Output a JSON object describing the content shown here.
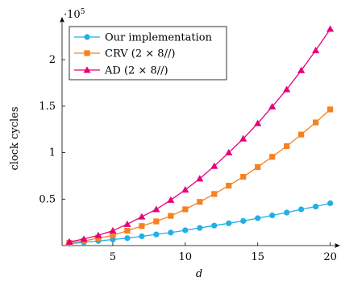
{
  "chart_data": {
    "type": "line",
    "title": "",
    "xlabel": "d",
    "ylabel": "clock cycles",
    "y_multiplier_label": "·10",
    "y_multiplier_exponent": "5",
    "xlim": [
      1.5,
      20.3
    ],
    "ylim": [
      0,
      2.4
    ],
    "x_ticks": [
      5,
      10,
      15,
      20
    ],
    "y_ticks": [
      0.5,
      1,
      1.5,
      2
    ],
    "x_tick_labels": [
      "5",
      "10",
      "15",
      "20"
    ],
    "y_tick_labels": [
      "0.5",
      "1",
      "1.5",
      "2"
    ],
    "grid": false,
    "legend_position": "top-left",
    "x": [
      2,
      3,
      4,
      5,
      6,
      7,
      8,
      9,
      10,
      11,
      12,
      13,
      14,
      15,
      16,
      17,
      18,
      19,
      20
    ],
    "series": [
      {
        "name": "Our implementation",
        "color": "#1fb0e6",
        "marker": "circle",
        "values": [
          0.02,
          0.035,
          0.05,
          0.065,
          0.08,
          0.1,
          0.12,
          0.14,
          0.165,
          0.19,
          0.215,
          0.24,
          0.265,
          0.295,
          0.325,
          0.355,
          0.39,
          0.42,
          0.455
        ]
      },
      {
        "name": "CRV (2 × 8∕∕)",
        "color": "#f58220",
        "marker": "square",
        "values": [
          0.03,
          0.05,
          0.08,
          0.11,
          0.16,
          0.21,
          0.26,
          0.32,
          0.39,
          0.47,
          0.555,
          0.645,
          0.74,
          0.845,
          0.955,
          1.07,
          1.195,
          1.325,
          1.465
        ]
      },
      {
        "name": "AD (2 × 8∕∕)",
        "color": "#e6007e",
        "marker": "triangle",
        "values": [
          0.04,
          0.07,
          0.11,
          0.16,
          0.23,
          0.31,
          0.39,
          0.49,
          0.6,
          0.72,
          0.855,
          1.0,
          1.15,
          1.315,
          1.495,
          1.68,
          1.885,
          2.1,
          2.33
        ]
      }
    ]
  }
}
